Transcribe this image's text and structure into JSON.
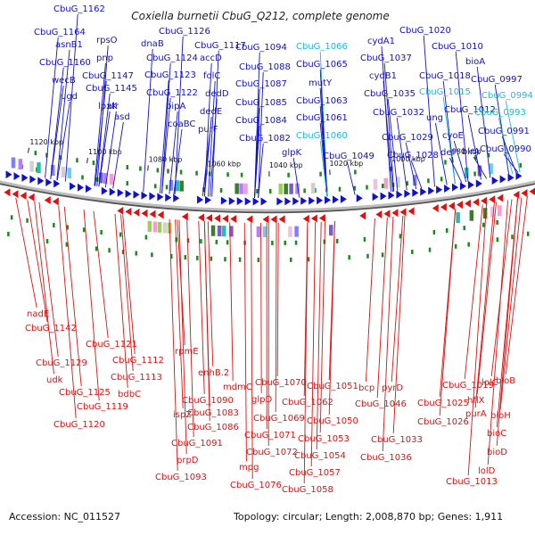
{
  "title": "Coxiella burnetii CbuG_Q212, complete genome",
  "footer": {
    "accession": "Accession: NC_011527",
    "topology": "Topology: circular; Length: 2,008,870 bp; Genes: 1,911"
  },
  "colors": {
    "forward": "#1010d0",
    "reverse": "#e01010",
    "highlight": "#20b8d8",
    "backbone": "#888888",
    "marker": "#1a8a1a"
  },
  "ticks": [
    "1120 kbp",
    "1100 kbp",
    "1080 kbp",
    "1060 kbp",
    "1040 kbp",
    "1020 kbp",
    "1000 kbp",
    "980 kbp"
  ],
  "forward_genes": [
    "CbuG_1162",
    "CbuG_1164",
    "asnB1",
    "CbuG_1160",
    "wecB",
    "ugd",
    "rpsO",
    "pnp",
    "CbuG_1147",
    "CbuG_1145",
    "lpxK",
    "CbuG_1126",
    "dnaB",
    "CbuG_1124",
    "CbuG_1123",
    "CbuG_1122",
    "alr",
    "asd",
    "CbuG_1117",
    "accD",
    "bipA",
    "coaBC",
    "folC",
    "dedD",
    "dedE",
    "purF",
    "CbuG_1094",
    "CbuG_1088",
    "CbuG_1087",
    "CbuG_1085",
    "CbuG_1084",
    "CbuG_1082",
    "glpK",
    "CbuG_1066",
    "CbuG_1065",
    "mutY",
    "CbuG_1063",
    "CbuG_1061",
    "CbuG_1060",
    "CbuG_1049",
    "cydA1",
    "CbuG_1037",
    "cydB1",
    "CbuG_1035",
    "CbuG_1032",
    "CbuG_1029",
    "CbuG_1028",
    "CbuG_1020",
    "CbuG_1010",
    "CbuG_1018",
    "CbuG_1015",
    "ung",
    "CbuG_1012",
    "cyoE",
    "def",
    "birA",
    "bioA",
    "CbuG_0997",
    "CbuG_0994",
    "CbuG_0993",
    "CbuG_0991",
    "CbuG_0990"
  ],
  "reverse_genes": [
    "nadE",
    "CbuG_1142",
    "CbuG_1121",
    "CbuG_1129",
    "udk",
    "CbuG_1125",
    "CbuG_1119",
    "CbuG_1120",
    "CbuG_1112",
    "CbuG_1113",
    "bdbC",
    "rpmE",
    "enhB.2",
    "mdmC",
    "CbuG_1090",
    "ispZ",
    "CbuG_1083",
    "CbuG_1086",
    "CbuG_1091",
    "prpD",
    "CbuG_1093",
    "CbuG_1070",
    "glpD",
    "CbuG_1069",
    "CbuG_1071",
    "CbuG_1072",
    "mpg",
    "CbuG_1076",
    "CbuG_1051",
    "CbuG_1062",
    "CbuG_1050",
    "CbuG_1053",
    "CbuG_1054",
    "CbuG_1057",
    "CbuG_1058",
    "bcp",
    "CbuG_1046",
    "pyrD",
    "CbuG_1033",
    "CbuG_1036",
    "CbuG_1019",
    "CbuG_1025",
    "CbuG_1026",
    "hflX",
    "purA",
    "lolC",
    "bioB",
    "bioH",
    "bioC",
    "bioD",
    "lolD",
    "CbuG_1013"
  ]
}
